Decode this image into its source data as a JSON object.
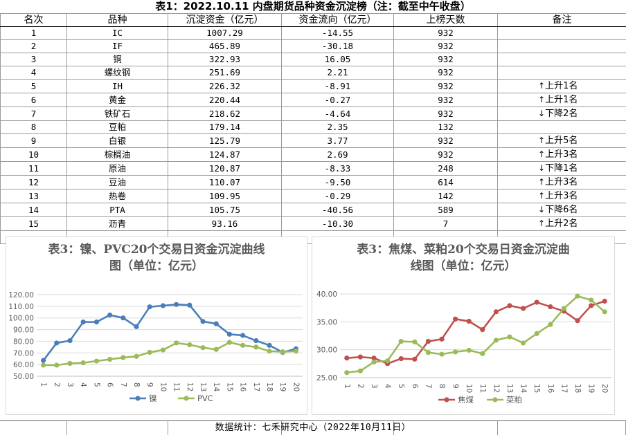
{
  "table": {
    "title": "表1：2022.10.11 内盘期货品种资金沉淀榜（注：截至中午收盘）",
    "headers": [
      "名次",
      "品种",
      "沉淀资金（亿元）",
      "资金流向（亿元）",
      "上榜天数",
      "备注"
    ],
    "rows": [
      {
        "rank": "1",
        "name": "IC",
        "fund": "1007.29",
        "flow": "-14.55",
        "days": "932",
        "arrow": "",
        "note": ""
      },
      {
        "rank": "2",
        "name": "IF",
        "fund": "465.89",
        "flow": "-30.18",
        "days": "932",
        "arrow": "",
        "note": ""
      },
      {
        "rank": "3",
        "name": "铜",
        "fund": "322.93",
        "flow": "16.05",
        "days": "932",
        "arrow": "",
        "note": ""
      },
      {
        "rank": "4",
        "name": "螺纹钢",
        "fund": "251.69",
        "flow": "2.21",
        "days": "932",
        "arrow": "",
        "note": ""
      },
      {
        "rank": "5",
        "name": "IH",
        "fund": "226.32",
        "flow": "-8.91",
        "days": "932",
        "arrow": "↑",
        "note": "上升1名"
      },
      {
        "rank": "6",
        "name": "黄金",
        "fund": "220.44",
        "flow": "-0.27",
        "days": "932",
        "arrow": "↑",
        "note": "上升1名"
      },
      {
        "rank": "7",
        "name": "铁矿石",
        "fund": "218.62",
        "flow": "-4.64",
        "days": "932",
        "arrow": "↓",
        "note": "下降2名"
      },
      {
        "rank": "8",
        "name": "豆粕",
        "fund": "179.14",
        "flow": "2.35",
        "days": "132",
        "arrow": "",
        "note": ""
      },
      {
        "rank": "9",
        "name": "白银",
        "fund": "125.79",
        "flow": "3.77",
        "days": "932",
        "arrow": "↑",
        "note": "上升5名"
      },
      {
        "rank": "10",
        "name": "棕榈油",
        "fund": "124.87",
        "flow": "2.69",
        "days": "932",
        "arrow": "↑",
        "note": "上升3名"
      },
      {
        "rank": "11",
        "name": "原油",
        "fund": "120.87",
        "flow": "-8.33",
        "days": "248",
        "arrow": "↓",
        "note": "下降1名"
      },
      {
        "rank": "12",
        "name": "豆油",
        "fund": "110.07",
        "flow": "-9.50",
        "days": "614",
        "arrow": "↑",
        "note": "上升3名"
      },
      {
        "rank": "13",
        "name": "热卷",
        "fund": "109.95",
        "flow": "-0.29",
        "days": "142",
        "arrow": "↑",
        "note": "上升3名"
      },
      {
        "rank": "14",
        "name": "PTA",
        "fund": "105.75",
        "flow": "-40.56",
        "days": "589",
        "arrow": "↓",
        "note": "下降6名"
      },
      {
        "rank": "15",
        "name": "沥青",
        "fund": "93.16",
        "flow": "-10.30",
        "days": "7",
        "arrow": "↑",
        "note": "上升2名"
      }
    ]
  },
  "footer": "数据统计：七禾研究中心（2022年10月11日）",
  "chart_data": [
    {
      "type": "line",
      "title_line1": "表3：镍、PVC20个交易日资金沉淀曲线",
      "title_line2": "图（单位：亿元）",
      "x": [
        "1",
        "2",
        "3",
        "4",
        "5",
        "6",
        "7",
        "8",
        "9",
        "10",
        "11",
        "12",
        "13",
        "14",
        "15",
        "16",
        "17",
        "18",
        "19",
        "20"
      ],
      "ylim": [
        50,
        120
      ],
      "yticks": [
        "50.00",
        "60.00",
        "70.00",
        "80.00",
        "90.00",
        "100.00",
        "110.00",
        "120.00"
      ],
      "legend_position": "bottom",
      "grid": true,
      "series": [
        {
          "name": "镍",
          "color": "#4a7ebb",
          "values": [
            63.5,
            78.5,
            80.5,
            96.5,
            96.5,
            102.5,
            100.0,
            92.5,
            109.5,
            110.5,
            111.5,
            111.0,
            97.0,
            95.0,
            86.0,
            85.0,
            80.5,
            76.5,
            70.5,
            73.5
          ]
        },
        {
          "name": "PVC",
          "color": "#9bbb59",
          "values": [
            59.5,
            59.5,
            61.0,
            61.5,
            63.0,
            64.5,
            66.0,
            67.0,
            70.5,
            72.5,
            78.5,
            77.0,
            74.5,
            73.0,
            79.0,
            76.5,
            75.0,
            71.5,
            71.0,
            71.5
          ]
        }
      ]
    },
    {
      "type": "line",
      "title_line1": "表3：焦煤、菜粕20个交易日资金沉淀曲",
      "title_line2": "线图（单位：亿元）",
      "x": [
        "1",
        "2",
        "3",
        "4",
        "5",
        "6",
        "7",
        "8",
        "9",
        "10",
        "11",
        "12",
        "13",
        "14",
        "15",
        "16",
        "17",
        "18",
        "19",
        "20"
      ],
      "ylim": [
        25,
        40
      ],
      "yticks": [
        "25.00",
        "30.00",
        "35.00",
        "40.00"
      ],
      "legend_position": "bottom",
      "grid": true,
      "series": [
        {
          "name": "焦煤",
          "color": "#c0504d",
          "values": [
            28.5,
            28.7,
            28.5,
            27.5,
            28.4,
            28.3,
            31.5,
            31.9,
            35.5,
            35.1,
            33.6,
            36.8,
            37.9,
            37.4,
            38.5,
            37.7,
            36.9,
            35.2,
            37.9,
            38.7
          ]
        },
        {
          "name": "菜粕",
          "color": "#9bbb59",
          "values": [
            25.9,
            26.2,
            27.8,
            28.0,
            31.5,
            31.4,
            29.5,
            29.2,
            29.6,
            29.9,
            29.3,
            31.7,
            32.3,
            31.2,
            32.9,
            34.5,
            37.4,
            39.6,
            38.9,
            36.8
          ]
        }
      ]
    }
  ]
}
